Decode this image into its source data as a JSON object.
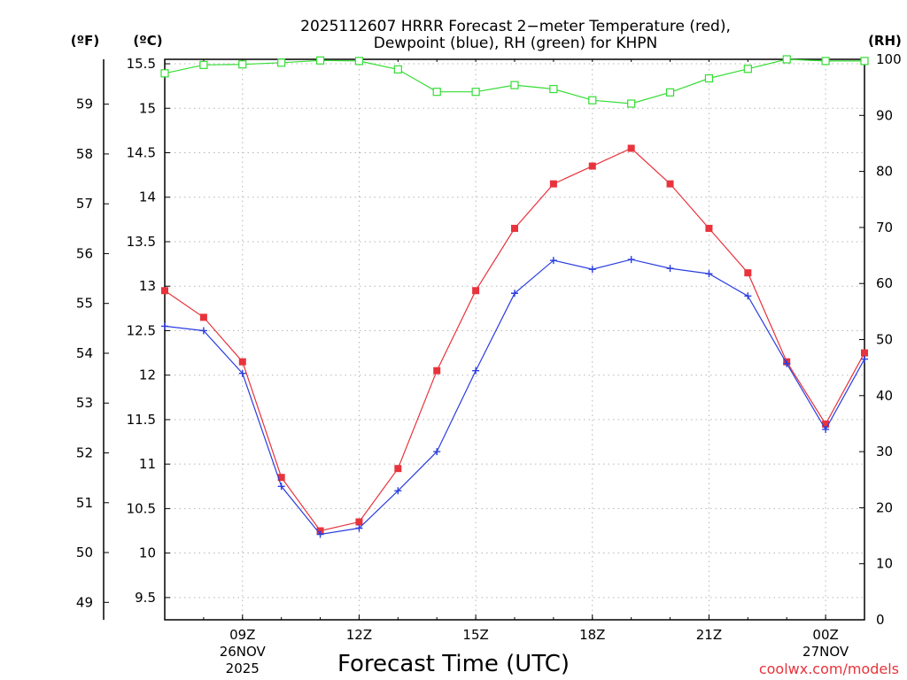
{
  "chart_data": {
    "type": "line",
    "title": "2025112607 HRRR Forecast 2-meter Temperature (red), Dewpoint (blue), RH (green) for KHPN",
    "title_lines": [
      "2025112607 HRRR Forecast 2−meter Temperature (red),",
      "Dewpoint (blue), RH (green) for KHPN"
    ],
    "xlabel": "Forecast Time (UTC)",
    "credit": "coolwx.com/models",
    "left_axis_f": {
      "unit_label": "(ºF)",
      "range": [
        48.65,
        59.9
      ],
      "ticks": [
        49,
        50,
        51,
        52,
        53,
        54,
        55,
        56,
        57,
        58,
        59
      ]
    },
    "left_axis_c": {
      "unit_label": "(ºC)",
      "range": [
        9.25,
        15.55
      ],
      "ticks": [
        "9.5",
        "10",
        "10.5",
        "11",
        "11.5",
        "12",
        "12.5",
        "13",
        "13.5",
        "14",
        "14.5",
        "15",
        "15.5"
      ]
    },
    "right_axis": {
      "unit_label": "(RH)",
      "range": [
        0,
        100
      ],
      "ticks": [
        0,
        10,
        20,
        30,
        40,
        50,
        60,
        70,
        80,
        90,
        100
      ]
    },
    "x_axis": {
      "unit": "hour",
      "range": [
        7,
        25
      ],
      "ticks": [
        {
          "hour": 9,
          "label": "09Z",
          "label2": "26NOV",
          "label3": "2025"
        },
        {
          "hour": 12,
          "label": "12Z"
        },
        {
          "hour": 15,
          "label": "15Z"
        },
        {
          "hour": 18,
          "label": "18Z"
        },
        {
          "hour": 21,
          "label": "21Z"
        },
        {
          "hour": 24,
          "label": "00Z",
          "label2": "27NOV"
        }
      ]
    },
    "grid": true,
    "x": [
      7,
      8,
      9,
      10,
      11,
      12,
      13,
      14,
      15,
      16,
      17,
      18,
      19,
      20,
      21,
      22,
      23,
      24,
      25
    ],
    "series": [
      {
        "name": "Temperature",
        "axis": "C",
        "color": "#e8333c",
        "marker": "square",
        "values": [
          12.95,
          12.65,
          12.15,
          10.85,
          10.25,
          10.35,
          10.95,
          12.05,
          12.95,
          13.65,
          14.15,
          14.35,
          14.55,
          14.15,
          13.65,
          13.15,
          12.15,
          11.45,
          12.25
        ]
      },
      {
        "name": "Dewpoint",
        "axis": "C",
        "color": "#2a3ee0",
        "marker": "plus",
        "values": [
          12.55,
          12.5,
          12.02,
          10.75,
          10.21,
          10.28,
          10.7,
          11.14,
          12.05,
          12.92,
          13.29,
          13.19,
          13.3,
          13.2,
          13.14,
          12.89,
          12.13,
          11.39,
          12.18
        ]
      },
      {
        "name": "RH",
        "axis": "RH",
        "color": "#33dd33",
        "marker": "open-square",
        "values": [
          97.5,
          99,
          99.1,
          99.4,
          99.8,
          99.7,
          98.2,
          94.2,
          94.2,
          95.4,
          94.7,
          92.7,
          92.1,
          94.1,
          96.6,
          98.3,
          100,
          99.7,
          99.7
        ]
      }
    ]
  }
}
